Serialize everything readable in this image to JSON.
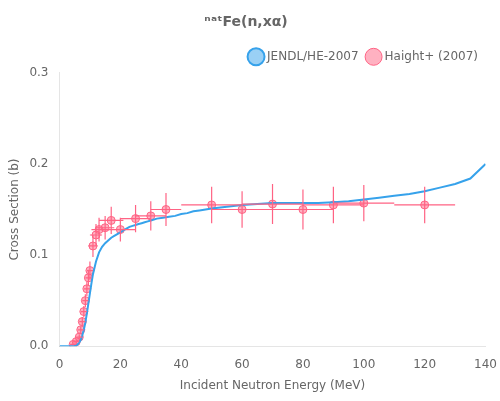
{
  "chart_data": {
    "type": "line",
    "title": "ⁿᵃᵗFe(n,xα)",
    "x_label": "Incident Neutron Energy (MeV)",
    "y_label": "Cross Section (b)",
    "xlim": [
      0,
      140
    ],
    "ylim": [
      0,
      0.3
    ],
    "xticks": [
      0,
      20,
      40,
      60,
      80,
      100,
      120,
      140
    ],
    "yticks": [
      {
        "value": 0,
        "label": "0.0"
      },
      0.1,
      0.2,
      0.3
    ],
    "grid": false,
    "legend": "upper right",
    "series": [
      {
        "name": "JENDL/HE-2007",
        "type": "line",
        "line_style": "solid",
        "marker": "none",
        "x": [
          0.1,
          1.0,
          2.0,
          3.0,
          4.0,
          4.5,
          5.0,
          5.5,
          6.0,
          6.5,
          7.0,
          7.5,
          8.0,
          8.5,
          9.0,
          9.5,
          10.0,
          10.5,
          11.0,
          12.0,
          13.0,
          14.0,
          15.0,
          16.0,
          17.0,
          18.0,
          19.0,
          20.0,
          21.0,
          22.0,
          23.0,
          24.0,
          25.0,
          26.0,
          27.0,
          28.0,
          29.0,
          30.0,
          32.0,
          34.0,
          36.0,
          38.0,
          40.0,
          42.0,
          44.0,
          46.0,
          48.0,
          50.0,
          55.0,
          60.0,
          65.0,
          70.0,
          75.0,
          80.0,
          85.0,
          90.0,
          95.0,
          100.0,
          105.0,
          110.0,
          115.0,
          120.0,
          125.0,
          130.0,
          135.0,
          140.0
        ],
        "values": [
          0.0,
          0.0,
          0.0,
          0.0,
          0.0,
          0.0,
          0.0,
          0.001,
          0.002,
          0.004,
          0.007,
          0.012,
          0.018,
          0.026,
          0.036,
          0.047,
          0.058,
          0.069,
          0.079,
          0.093,
          0.103,
          0.109,
          0.113,
          0.116,
          0.119,
          0.121,
          0.123,
          0.125,
          0.127,
          0.129,
          0.131,
          0.132,
          0.133,
          0.134,
          0.135,
          0.136,
          0.137,
          0.138,
          0.14,
          0.141,
          0.142,
          0.143,
          0.145,
          0.146,
          0.148,
          0.149,
          0.15,
          0.151,
          0.153,
          0.155,
          0.156,
          0.157,
          0.157,
          0.157,
          0.157,
          0.158,
          0.159,
          0.161,
          0.163,
          0.165,
          0.167,
          0.17,
          0.174,
          0.178,
          0.184,
          0.2
        ]
      },
      {
        "name": "Haight+ (2007)",
        "type": "scatter",
        "marker": "circle",
        "x": [
          4.5,
          5.5,
          6.5,
          7.0,
          7.5,
          8.0,
          8.5,
          9.0,
          9.5,
          10.0,
          11.0,
          12.0,
          13.0,
          15.0,
          17.0,
          20.0,
          25.0,
          30.0,
          35.0,
          50.0,
          60.0,
          70.0,
          80.0,
          90.0,
          100.0,
          120.0
        ],
        "values": [
          0.002,
          0.005,
          0.01,
          0.018,
          0.027,
          0.038,
          0.05,
          0.063,
          0.075,
          0.083,
          0.11,
          0.122,
          0.128,
          0.13,
          0.138,
          0.128,
          0.14,
          0.143,
          0.15,
          0.155,
          0.15,
          0.156,
          0.15,
          0.155,
          0.157,
          0.155
        ],
        "x_error_low": [
          1.0,
          1.0,
          1.0,
          1.0,
          1.0,
          1.0,
          1.0,
          1.0,
          1.0,
          1.0,
          1.5,
          2.0,
          2.5,
          3.0,
          4.0,
          5.0,
          5.0,
          5.0,
          5.0,
          10.0,
          10.0,
          10.0,
          10.0,
          10.0,
          10.0,
          10.0
        ],
        "x_error_high": [
          1.0,
          1.0,
          1.0,
          1.0,
          1.0,
          1.0,
          1.0,
          1.0,
          1.0,
          1.0,
          1.5,
          2.0,
          2.5,
          3.0,
          4.0,
          5.0,
          5.0,
          5.0,
          5.0,
          10.0,
          10.0,
          10.0,
          10.0,
          10.0,
          10.0,
          10.0
        ],
        "y_error_low": [
          0.001,
          0.002,
          0.003,
          0.004,
          0.005,
          0.006,
          0.007,
          0.008,
          0.009,
          0.01,
          0.012,
          0.012,
          0.013,
          0.013,
          0.015,
          0.013,
          0.015,
          0.016,
          0.018,
          0.02,
          0.02,
          0.022,
          0.022,
          0.02,
          0.02,
          0.02
        ],
        "y_error_high": [
          0.001,
          0.002,
          0.003,
          0.004,
          0.005,
          0.006,
          0.007,
          0.008,
          0.009,
          0.01,
          0.012,
          0.012,
          0.013,
          0.013,
          0.015,
          0.013,
          0.015,
          0.016,
          0.018,
          0.02,
          0.02,
          0.022,
          0.022,
          0.02,
          0.02,
          0.02
        ]
      }
    ]
  }
}
